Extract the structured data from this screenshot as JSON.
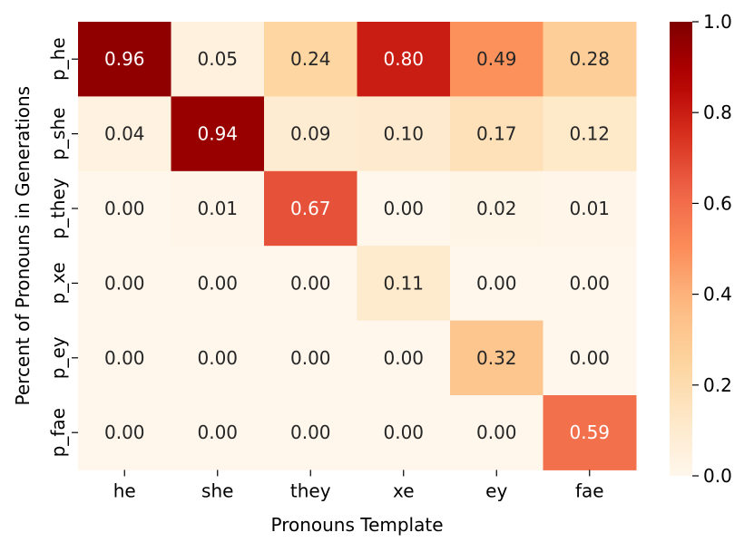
{
  "chart_data": {
    "type": "heatmap",
    "title": "",
    "xlabel": "Pronouns Template",
    "ylabel": "Percent of Pronouns in Generations",
    "x_categories": [
      "he",
      "she",
      "they",
      "xe",
      "ey",
      "fae"
    ],
    "y_categories": [
      "p_he",
      "p_she",
      "p_they",
      "p_xe",
      "p_ey",
      "p_fae"
    ],
    "values": [
      [
        0.96,
        0.05,
        0.24,
        0.8,
        0.49,
        0.28
      ],
      [
        0.04,
        0.94,
        0.09,
        0.1,
        0.17,
        0.12
      ],
      [
        0.0,
        0.01,
        0.67,
        0.0,
        0.02,
        0.01
      ],
      [
        0.0,
        0.0,
        0.0,
        0.11,
        0.0,
        0.0
      ],
      [
        0.0,
        0.0,
        0.0,
        0.0,
        0.32,
        0.0
      ],
      [
        0.0,
        0.0,
        0.0,
        0.0,
        0.0,
        0.59
      ]
    ],
    "value_format": "2 decimals",
    "colormap": "OrRd",
    "vmin": 0.0,
    "vmax": 1.0,
    "colorbar_ticks": [
      "0.0",
      "0.2",
      "0.4",
      "0.6",
      "0.8",
      "1.0"
    ],
    "colorbar_position": "right",
    "grid": false
  }
}
